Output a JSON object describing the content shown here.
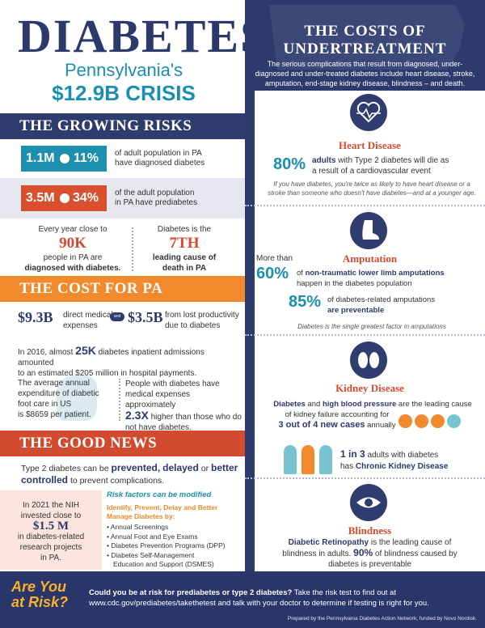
{
  "header": {
    "title": "DIABETES",
    "subtitle": "Pennsylvania's",
    "crisis": "$12.9B CRISIS"
  },
  "growing_risks": {
    "heading": "THE GROWING RISKS",
    "adults_num": "1.1M",
    "adults_pct": "11%",
    "adults_text_1": "of adult population in PA",
    "adults_text_2": "have diagnosed diabetes",
    "pre_num": "3.5M",
    "pre_pct": "34%",
    "pre_text_1": "of the adult population",
    "pre_text_2": "in PA have prediabetes",
    "yearly_lead": "Every year close to",
    "yearly_num": "90K",
    "yearly_text_1": "people in PA are",
    "yearly_text_2": "diagnosed with diabetes.",
    "rank_lead": "Diabetes is the",
    "rank_num": "7TH",
    "rank_text_1": "leading cause of",
    "rank_text_2": "death in PA"
  },
  "cost_pa": {
    "heading": "THE COST FOR PA",
    "direct_num": "$9.3B",
    "direct_text_1": "direct medical",
    "direct_text_2": "expenses",
    "plus": "and",
    "lost_num": "$3.5B",
    "lost_text_1": "from lost productivity",
    "lost_text_2": "due to diabetes",
    "admissions_1": "In 2016, almost",
    "admissions_num": "25K",
    "admissions_2": "diabetes inpatient admissions amounted",
    "admissions_3": "to an estimated $205 million in hospital payments.",
    "foot_text_1": "The average annual",
    "foot_text_2": "expenditure of diabetic",
    "foot_text_3": "foot care in US",
    "foot_text_4": "is $8659 per patient.",
    "exp_text_1": "People with diabetes have",
    "exp_text_2": "medical expenses approximately",
    "exp_num": "2.3X",
    "exp_text_3": "higher than those who do",
    "exp_text_4": "not have diabetes."
  },
  "good_news": {
    "heading": "THE GOOD NEWS",
    "line1_a": "Type 2 diabetes can be",
    "w_prevented": "prevented,",
    "w_delayed": "delayed",
    "w_or": "or",
    "w_better": "better",
    "w_controlled": "controlled",
    "line2_b": "to prevent complications.",
    "nih_1": "In 2021 the NIH",
    "nih_2": "invested close to",
    "nih_num": "$1.5 M",
    "nih_3": "in diabetes-related",
    "nih_4": "research projects",
    "nih_5": "in PA.",
    "risk_title": "Risk factors can be modified",
    "risk_sub_1": "Identify, Prevent, Delay and Better",
    "risk_sub_2": "Manage Diabetes by:",
    "items": [
      "Annual Screenings",
      "Annual Foot and Eye Exams",
      "Diabetes Prevention Programs (DPP)",
      "Diabetes Self-Management",
      "Education and Support (DSMES)"
    ]
  },
  "undertreatment": {
    "title_1": "THE COSTS OF",
    "title_2": "UNDERTREATMENT",
    "intro": "The serious complications that result from diagnosed, under-diagnosed and under-treated diabetes include heart disease, stroke, amputation, end-stage kidney disease, blindness – and death.",
    "heart": {
      "heading": "Heart Disease",
      "pct": "80%",
      "text_1a": "adults",
      "text_1b": "with Type 2 diabetes will die as",
      "text_2": "a result of a cardiovascular event",
      "note": "If you have diabetes, you're twice as likely to have heart disease or a stroke than someone who doesn't have diabetes—and at a younger age."
    },
    "amputation": {
      "heading": "Amputation",
      "lead": "More than",
      "pct": "60%",
      "text_1a": "of",
      "text_1b": "non-traumatic lower limb amputations",
      "text_2": "happen in the diabetes population",
      "pct2": "85%",
      "text_3": "of diabetes-related amputations",
      "text_4": "are preventable",
      "note": "Diabetes is the single greatest factor in amputations"
    },
    "kidney": {
      "heading": "Kidney Disease",
      "t1": "Diabetes",
      "t2": "and",
      "t3": "high blood pressure",
      "t4": "are the leading cause",
      "t5": "of kidney failure accounting for",
      "t6": "3 out of 4 new cases",
      "t7": "annually",
      "ratio": "1 in 3",
      "t8": "adults with diabetes",
      "t9a": "has",
      "t9b": "Chronic Kidney Disease"
    },
    "blindness": {
      "heading": "Blindness",
      "t1": "Diabetic Retinopathy",
      "t2": "is the leading cause of",
      "t3": "blindness in adults.",
      "pct": "90%",
      "t4": "of blindness caused by",
      "t5": "diabetes is preventable"
    }
  },
  "footer": {
    "title_1": "Are You",
    "title_2": "at Risk?",
    "q_bold": "Could you be at risk for prediabetes or type 2 diabetes?",
    "q_rest": "Take the risk test to find out at",
    "url_line": "www.cdc.gov/prediabetes/takethetest and talk with your doctor to determine if testing is right for you.",
    "credit": "Prepared by the Pennsylvania Diabetes Action Network, funded by Novo Nordisk."
  },
  "colors": {
    "navy": "#2b3a6b",
    "orange": "#f08a2c",
    "red": "#d24b2e",
    "teal": "#1a8fb0",
    "gold": "#f8b12a"
  },
  "icons": [
    "heart-pulse-icon",
    "foot-icon",
    "kidneys-icon",
    "eye-icon",
    "people-icon",
    "plus-circles-icon",
    "arrow-icon"
  ]
}
